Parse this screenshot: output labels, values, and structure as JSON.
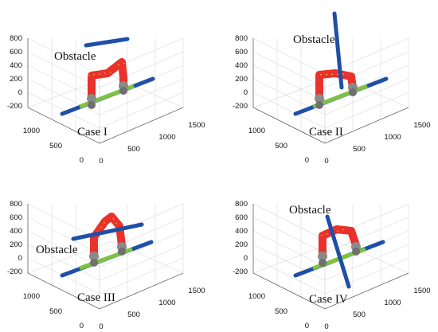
{
  "panels": [
    {
      "case_label": "Case I",
      "obstacle_label": "Obstacle"
    },
    {
      "case_label": "Case II",
      "obstacle_label": "Obstacle"
    },
    {
      "case_label": "Case III",
      "obstacle_label": "Obstacle"
    },
    {
      "case_label": "Case IV",
      "obstacle_label": "Obstacle"
    }
  ],
  "axes": {
    "z_ticks": [
      "800",
      "600",
      "400",
      "200",
      "0",
      "-200"
    ],
    "y_ticks": [
      "1000",
      "500",
      "0"
    ],
    "x_ticks": [
      "0",
      "500",
      "1000",
      "1500"
    ]
  },
  "colors": {
    "pipe": "#1f4fa6",
    "pipe_dark": "#163a7c",
    "arm": "#e8322b",
    "arm_band": "#f2a63a",
    "joint": "#8a8a8a",
    "rail_green": "#7fc241"
  }
}
